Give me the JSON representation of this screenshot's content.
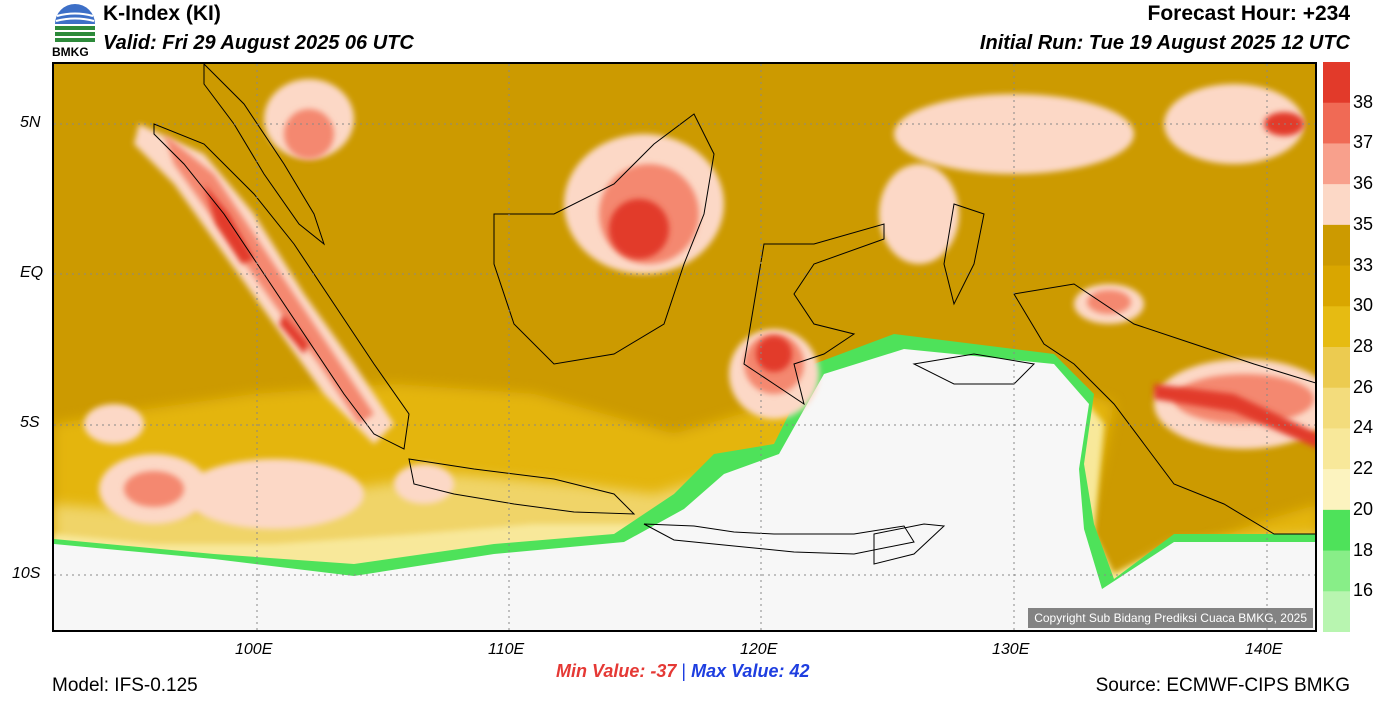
{
  "header": {
    "title": "K-Index (KI)",
    "valid": "Valid: Fri 29 August 2025 06 UTC",
    "forecast_hour": "Forecast Hour: +234",
    "initial_run": "Initial Run: Tue 19 August 2025 12 UTC"
  },
  "logo": {
    "text": "BMKG"
  },
  "map": {
    "lat_labels": [
      "5N",
      "EQ",
      "5S",
      "10S"
    ],
    "lon_labels": [
      "100E",
      "110E",
      "120E",
      "130E",
      "140E"
    ],
    "copyright": "Copyright Sub Bidang Prediksi Cuaca BMKG, 2025"
  },
  "legend": {
    "levels": [
      "38",
      "37",
      "36",
      "35",
      "33",
      "30",
      "28",
      "26",
      "24",
      "22",
      "20",
      "18",
      "16"
    ],
    "colors": [
      "#e23a2a",
      "#f06a55",
      "#f8a08c",
      "#fcd8c6",
      "#cc9a00",
      "#d9a600",
      "#e6bb12",
      "#eccb50",
      "#f3dc7c",
      "#f8e89a",
      "#fcf3bf",
      "#4ee25a",
      "#88ee88",
      "#b8f5b0"
    ]
  },
  "stats": {
    "min_label": "Min Value: -37",
    "separator": "|",
    "max_label": "Max Value:  42"
  },
  "footer": {
    "model": "Model: IFS-0.125",
    "source": "Source: ECMWF-CIPS BMKG"
  },
  "colors": {
    "min_value": "#e53935",
    "max_value": "#1e3ee0",
    "separator": "#1e3ee0"
  }
}
